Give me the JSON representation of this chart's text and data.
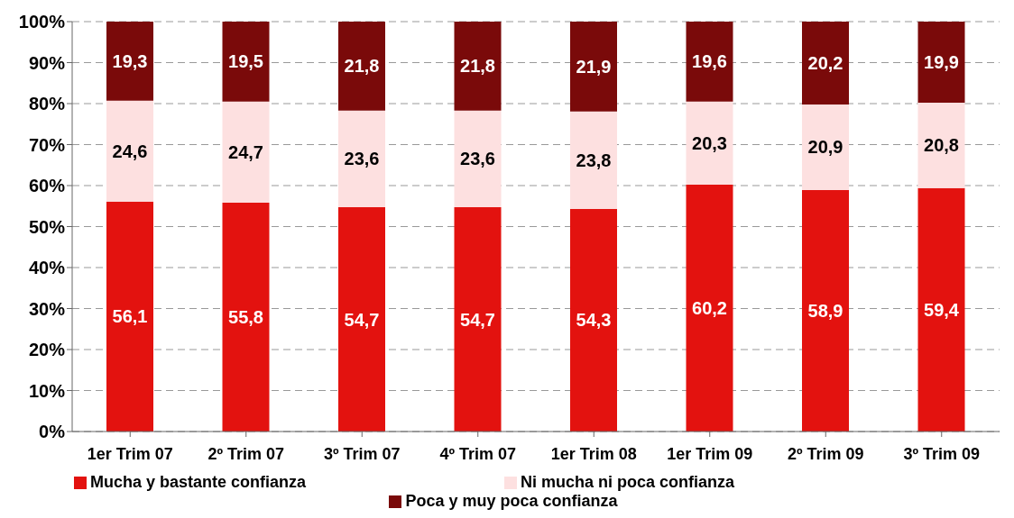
{
  "chart_data": {
    "type": "bar",
    "stacked": true,
    "categories": [
      "1er Trim 07",
      "2º Trim 07",
      "3º Trim 07",
      "4º Trim 07",
      "1er Trim 08",
      "1er Trim 09",
      "2º Trim 09",
      "3º Trim 09"
    ],
    "series": [
      {
        "name": "Mucha y bastante confianza",
        "color": "#e3120f",
        "values": [
          56.1,
          55.8,
          54.7,
          54.7,
          54.3,
          60.2,
          58.9,
          59.4
        ],
        "value_labels": [
          "56,1",
          "55,8",
          "54,7",
          "54,7",
          "54,3",
          "60,2",
          "58,9",
          "59,4"
        ]
      },
      {
        "name": "Ni mucha ni poca confianza",
        "color": "#fde0e0",
        "values": [
          24.6,
          24.7,
          23.6,
          23.6,
          23.8,
          20.3,
          20.9,
          20.8
        ],
        "value_labels": [
          "24,6",
          "24,7",
          "23,6",
          "23,6",
          "23,8",
          "20,3",
          "20,9",
          "20,8"
        ]
      },
      {
        "name": "Poca y muy poca confianza",
        "color": "#7a0a0a",
        "values": [
          19.3,
          19.5,
          21.8,
          21.8,
          21.9,
          19.6,
          20.2,
          19.9
        ],
        "value_labels": [
          "19,3",
          "19,5",
          "21,8",
          "21,8",
          "21,9",
          "19,6",
          "20,2",
          "19,9"
        ]
      }
    ],
    "ylim": [
      0,
      100
    ],
    "yticks": [
      {
        "value": 0,
        "label": "0%"
      },
      {
        "value": 10,
        "label": "10%"
      },
      {
        "value": 20,
        "label": "20%"
      },
      {
        "value": 30,
        "label": "30%"
      },
      {
        "value": 40,
        "label": "40%"
      },
      {
        "value": 50,
        "label": "50%"
      },
      {
        "value": 60,
        "label": "60%"
      },
      {
        "value": 70,
        "label": "70%"
      },
      {
        "value": 80,
        "label": "80%"
      },
      {
        "value": 90,
        "label": "90%"
      },
      {
        "value": 100,
        "label": "100%"
      }
    ],
    "grid": "y",
    "legend": "bottom"
  }
}
